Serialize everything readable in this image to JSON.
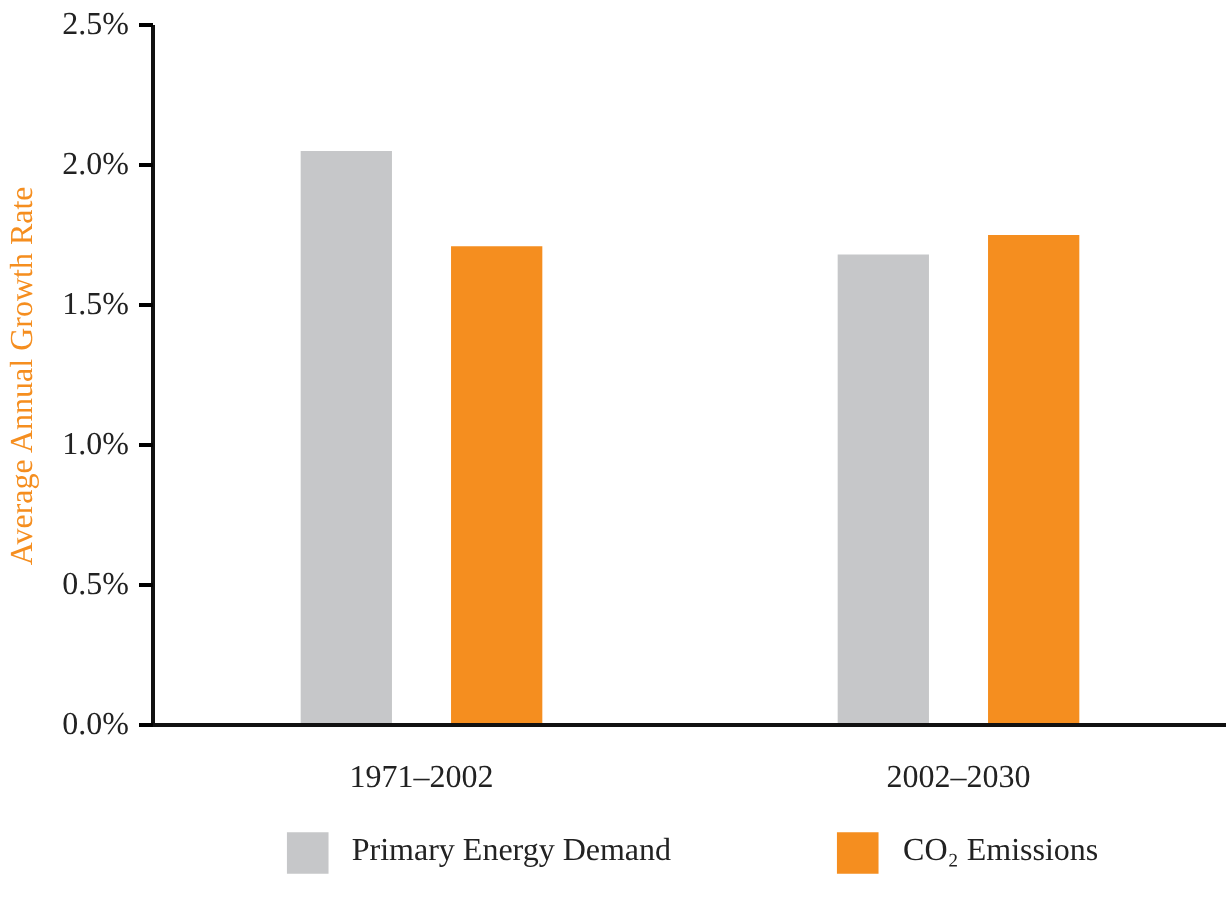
{
  "chart_data": {
    "type": "bar",
    "ylabel": "Average Annual Growth Rate",
    "categories": [
      "1971–2002",
      "2002–2030"
    ],
    "series": [
      {
        "name": "Primary Energy Demand",
        "color": "#c6c7c9",
        "values": [
          2.05,
          1.68
        ]
      },
      {
        "name": "CO₂ Emissions",
        "color": "#f58e1f",
        "values": [
          1.71,
          1.75
        ]
      }
    ],
    "ylim": [
      0,
      2.5
    ],
    "yticks": [
      {
        "value": 0,
        "label": "0.0%"
      },
      {
        "value": 0.5,
        "label": "0.5%"
      },
      {
        "value": 1,
        "label": "1.0%"
      },
      {
        "value": 1.5,
        "label": "1.5%"
      },
      {
        "value": 2,
        "label": "2.0%"
      },
      {
        "value": 2.5,
        "label": "2.5%"
      }
    ],
    "grid": false,
    "legend": "bottom"
  }
}
